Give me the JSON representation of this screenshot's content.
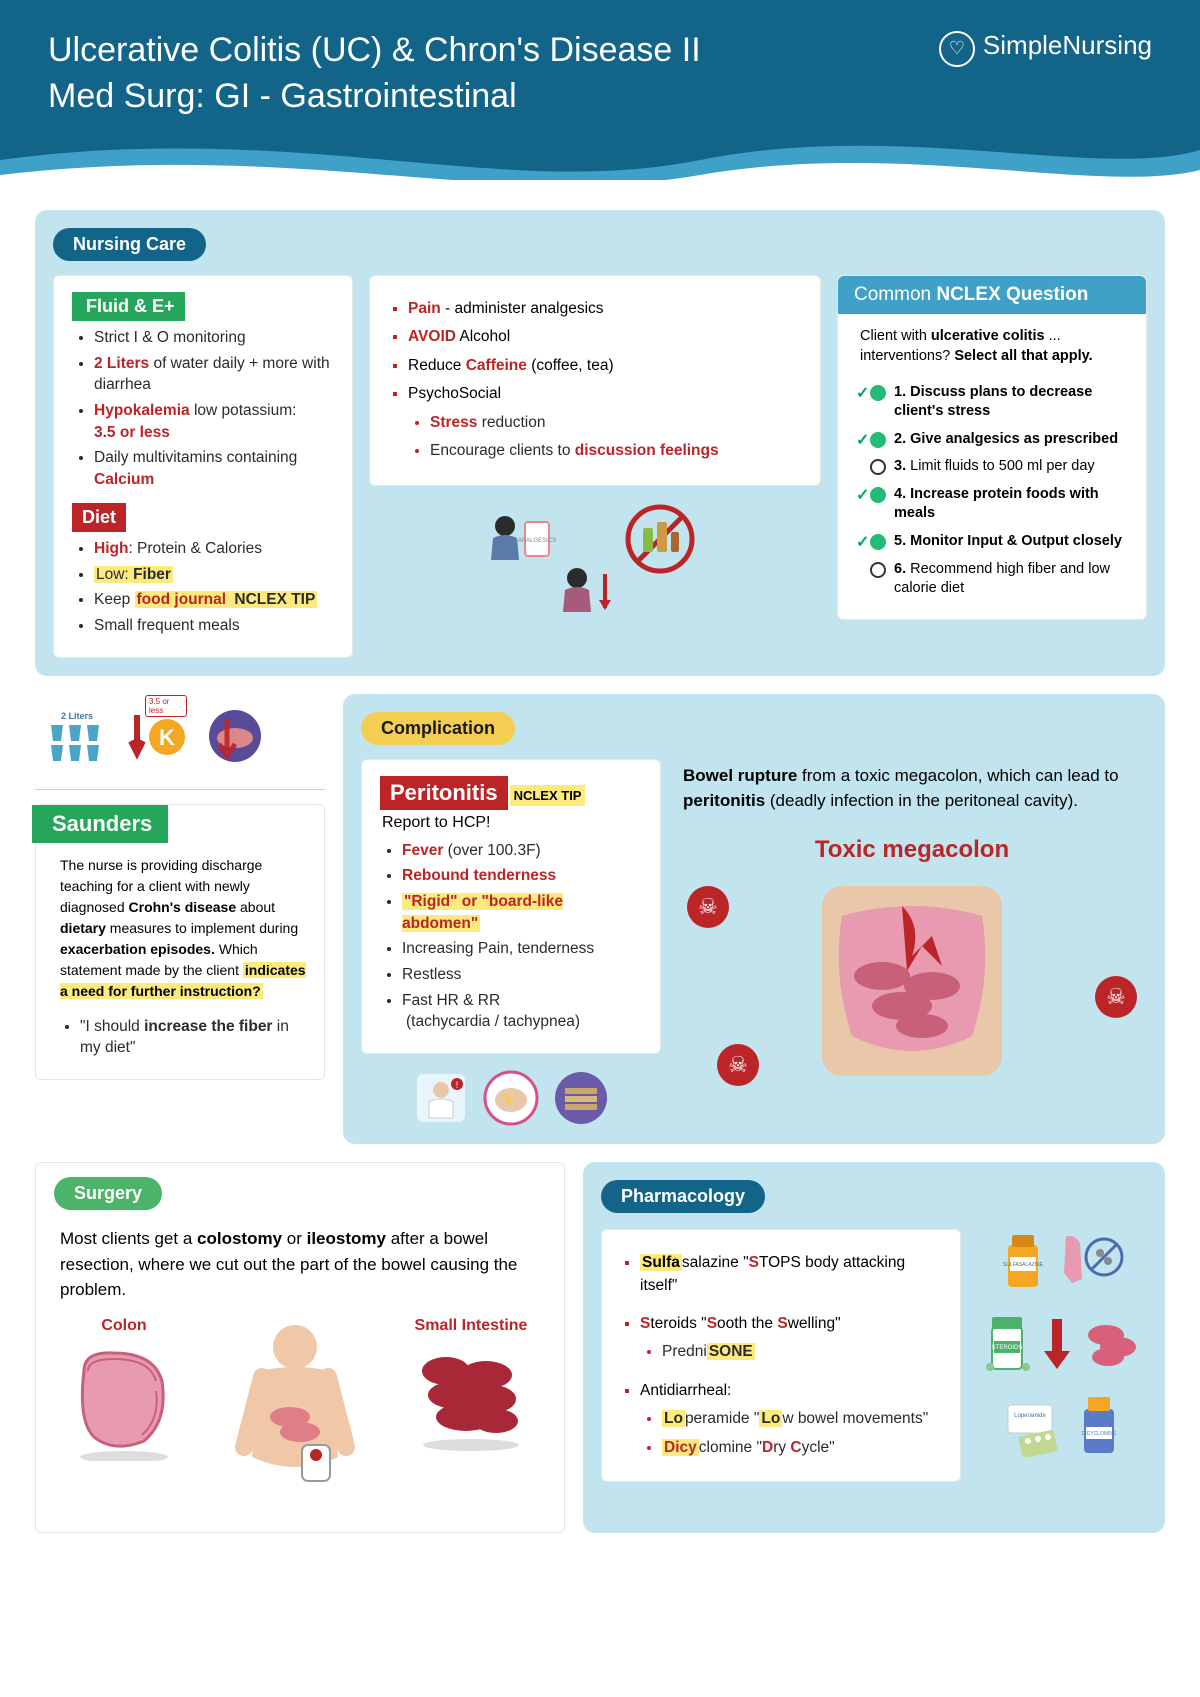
{
  "header": {
    "title_line1": "Ulcerative Colitis (UC) & Chron's Disease II",
    "title_line2": "Med Surg: GI - Gastrointestinal",
    "brand": "SimpleNursing",
    "bg_color": "#126489",
    "wave_color": "#3fa0c8"
  },
  "nursing_care": {
    "heading": "Nursing Care",
    "fluid_heading": "Fluid & E+",
    "fluid_items": [
      {
        "text": "Strict I & O monitoring"
      },
      {
        "pre": "",
        "red": "2 Liters",
        "post": " of water daily + more with diarrhea"
      },
      {
        "red": "Hypokalemia",
        "post": " low potassium: ",
        "red2": "3.5 or less"
      },
      {
        "pre": "Daily multivitamins containing ",
        "red": "Calcium"
      }
    ],
    "diet_heading": "Diet",
    "diet_items": [
      {
        "red": "High",
        "post": ": Protein & Calories"
      },
      {
        "hl": "Low: ",
        "hl2": "Fiber"
      },
      {
        "pre": "Keep ",
        "red_hl": "food journal",
        "nclex": " NCLEX TIP "
      },
      {
        "text": "Small frequent meals"
      }
    ],
    "middle_items": [
      {
        "red": "Pain",
        "post": " - administer analgesics"
      },
      {
        "red": "AVOID",
        "post": " Alcohol"
      },
      {
        "pre": "Reduce ",
        "red": "Caffeine",
        "post": " (coffee, tea)"
      },
      {
        "text": "PsychoSocial",
        "subs": [
          {
            "red": "Stress",
            "post": " reduction"
          },
          {
            "pre": "Encourage clients to ",
            "red": "discussion  feelings"
          }
        ]
      }
    ],
    "nclex": {
      "heading_pre": "Common ",
      "heading_bold": "NCLEX Question",
      "stem_pre": "Client with ",
      "stem_bold": "ulcerative colitis",
      "stem_post": " ... interventions?  ",
      "stem_sel": "Select all that apply.",
      "options": [
        {
          "n": "1.",
          "text": "Discuss plans to decrease client's stress",
          "correct": true
        },
        {
          "n": "2.",
          "text": "Give analgesics as prescribed",
          "correct": true
        },
        {
          "n": "3.",
          "text": "Limit fluids to 500 ml per day",
          "correct": false
        },
        {
          "n": "4.",
          "text": "Increase protein foods with meals",
          "correct": true
        },
        {
          "n": "5.",
          "text": "Monitor Input & Output closely",
          "correct": true
        },
        {
          "n": "6.",
          "text": "Recommend high fiber and low calorie diet",
          "correct": false
        }
      ]
    },
    "icon_labels": {
      "liters": "2 Liters",
      "k": "K",
      "k_badge": "3.5 or less"
    }
  },
  "saunders": {
    "heading": "Saunders",
    "body_parts": [
      "The nurse is providing discharge teaching for a client with newly diagnosed ",
      "Crohn's disease",
      " about ",
      "dietary",
      " measures to implement during ",
      "exacerbation episodes.",
      " Which statement made by the client ",
      "indicates a need for further instruction?"
    ],
    "answer_pre": "\"I should ",
    "answer_bold": "increase the fiber",
    "answer_post": " in my diet\""
  },
  "complication": {
    "heading": "Complication",
    "peritonitis": "Peritonitis",
    "nclex_tip": "NCLEX TIP",
    "report": "Report to HCP!",
    "items": [
      {
        "red": "Fever",
        "post": " (over 100.3F)"
      },
      {
        "red": "Rebound tenderness"
      },
      {
        "hl_red": "\"Rigid\" or \"board-like abdomen\""
      },
      {
        "text": "Increasing Pain, tenderness"
      },
      {
        "text": "Restless"
      },
      {
        "text": "Fast HR & RR",
        "sub": "(tachycardia / tachypnea)"
      }
    ],
    "explain_parts": [
      "Bowel rupture",
      " from a toxic megacolon, which can lead to ",
      "peritonitis",
      " (deadly infection in the peritoneal cavity)."
    ],
    "toxic_heading": "Toxic megacolon"
  },
  "surgery": {
    "heading": "Surgery",
    "body_parts": [
      "Most clients get a ",
      "colostomy",
      " or ",
      "ileostomy",
      " after a bowel resection, where we cut out the part of the bowel causing the problem."
    ],
    "colon": "Colon",
    "small_int": "Small Intestine"
  },
  "pharmacology": {
    "heading": "Pharmacology",
    "items": [
      {
        "hl": "Sulfa",
        "rest": "salazine",
        "quote": " \"STOPS body attacking itself\"",
        "s_red": "S"
      },
      {
        "s_red": "S",
        "text1": "teroids \"",
        "s_red2": "S",
        "text2": "ooth the ",
        "s_red3": "S",
        "text3": "welling\"",
        "sub": "PredniSONE",
        "sub_hl": "SONE"
      },
      {
        "text": "Antidiarrheal:",
        "subs": [
          {
            "hl": "Lo",
            "rest": "peramide \"",
            "hl2": "Lo",
            "rest2": "w bowel movements\""
          },
          {
            "hl": "Dicy",
            "rest": "clomine \"",
            "red": "D",
            "rest2": "ry ",
            "red2": "C",
            "rest3": "ycle\""
          }
        ]
      }
    ],
    "icon_labels": {
      "sulfa": "SULFASALAZINE",
      "ster": "STEROIDS",
      "lop": "Loperamide",
      "dicy": "DICYCLOMINE"
    }
  },
  "colors": {
    "panel_blue": "#c1e4ee",
    "pill_dark": "#126489",
    "pill_green": "#4bb36a",
    "pill_yellow": "#f4cd53",
    "red": "#bb2528",
    "green_tag": "#26a65b",
    "nclex_header": "#3fa0c8",
    "highlight": "#fdea7e"
  }
}
